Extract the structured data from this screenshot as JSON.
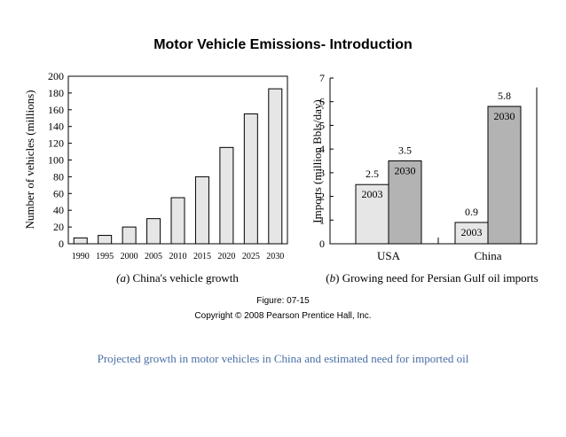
{
  "slide": {
    "title": "Motor Vehicle Emissions- Introduction",
    "figure_label": "Figure: 07-15",
    "copyright": "Copyright © 2008 Pearson Prentice Hall, Inc.",
    "caption": "Projected growth in motor vehicles in China and estimated need for imported oil"
  },
  "colors": {
    "bar_light": "#e6e6e6",
    "bar_dark": "#b3b3b3",
    "axis": "#000000",
    "caption": "#4a6fa5"
  },
  "chart_data": [
    {
      "type": "bar",
      "panel_tag": "(a)",
      "panel_caption": "China's vehicle growth",
      "categories": [
        "1990",
        "1995",
        "2000",
        "2005",
        "2010",
        "2015",
        "2020",
        "2025",
        "2030"
      ],
      "values": [
        7,
        10,
        20,
        30,
        55,
        80,
        115,
        155,
        185
      ],
      "ylabel": "Number of vehicles (millions)",
      "ylim": [
        0,
        200
      ],
      "yticks": [
        0,
        20,
        40,
        60,
        80,
        100,
        120,
        140,
        160,
        180,
        200
      ],
      "grid": false
    },
    {
      "type": "bar",
      "panel_tag": "(b)",
      "panel_caption": "Growing need for Persian Gulf oil imports",
      "categories": [
        "USA",
        "China"
      ],
      "series": [
        {
          "name": "2003",
          "values": [
            2.5,
            0.9
          ]
        },
        {
          "name": "2030",
          "values": [
            3.5,
            5.8
          ]
        }
      ],
      "value_labels": [
        [
          "2.5",
          "0.9"
        ],
        [
          "3.5",
          "5.8"
        ]
      ],
      "ylabel": "Imports (million Bbls/day)",
      "ylim": [
        0,
        7
      ],
      "yticks": [
        0,
        1,
        2,
        3,
        4,
        5,
        6,
        7
      ],
      "grid": false
    }
  ]
}
